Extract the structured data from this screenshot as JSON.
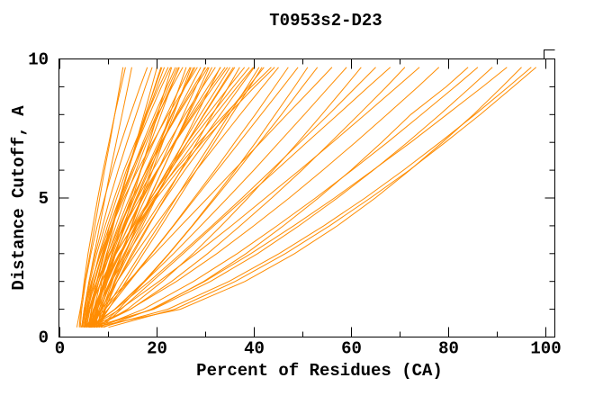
{
  "chart_data": {
    "type": "line",
    "title": "T0953s2-D23",
    "xlabel": "Percent of Residues (CA)",
    "ylabel": "Distance Cutoff, A",
    "xlim": [
      0,
      100
    ],
    "ylim": [
      0,
      10
    ],
    "x_major_ticks": [
      0,
      20,
      40,
      60,
      80,
      100
    ],
    "x_minor_step": 10,
    "y_major_ticks": [
      0,
      5,
      10
    ],
    "y_minor_step": 1,
    "grid": false,
    "legend": "none",
    "series_color": "#FF8C00",
    "axis_color": "#000000",
    "background_color": "#FFFFFF",
    "description": "Cumulative distance-cutoff curves, one orange line per predicted model",
    "y_samples": [
      0.35,
      1,
      2,
      3,
      4,
      5,
      6,
      7,
      8,
      9,
      9.7
    ],
    "curves": [
      [
        3.5,
        4.2,
        5.2,
        6.2,
        7.2,
        8.2,
        9.2,
        10.3,
        11.3,
        12.3,
        13.0
      ],
      [
        4.0,
        4.3,
        5.0,
        5.8,
        6.8,
        7.8,
        8.9,
        10.1,
        11.3,
        12.6,
        13.5
      ],
      [
        4.5,
        5.0,
        6.0,
        7.1,
        8.2,
        9.3,
        10.4,
        11.6,
        12.8,
        14.0,
        14.8
      ],
      [
        4.2,
        4.5,
        5.3,
        6.4,
        7.7,
        9.2,
        10.8,
        12.6,
        14.5,
        16.5,
        18.0
      ],
      [
        4.5,
        5.0,
        6.0,
        7.3,
        8.8,
        10.3,
        12.0,
        13.8,
        15.7,
        17.6,
        19.0
      ],
      [
        5.0,
        6.0,
        7.7,
        9.2,
        10.9,
        12.5,
        14.1,
        15.7,
        17.3,
        18.9,
        20.0
      ],
      [
        5.5,
        6.2,
        7.6,
        9.1,
        10.7,
        12.4,
        14.1,
        15.8,
        17.7,
        19.5,
        20.8
      ],
      [
        7.5,
        7.8,
        8.6,
        9.7,
        11.0,
        12.4,
        14.0,
        15.7,
        17.6,
        19.6,
        21.0
      ],
      [
        6.0,
        6.5,
        7.6,
        9.0,
        10.2,
        12.3,
        14.0,
        16.0,
        17.9,
        20.0,
        21.5
      ],
      [
        4.8,
        5.2,
        6.2,
        7.6,
        9.3,
        11.2,
        13.2,
        15.5,
        17.9,
        20.4,
        22.3
      ],
      [
        5.3,
        5.7,
        6.7,
        8.1,
        9.8,
        11.7,
        13.7,
        16.0,
        18.4,
        20.9,
        22.8
      ],
      [
        7.0,
        8.1,
        9.8,
        11.5,
        13.2,
        15.0,
        16.7,
        18.4,
        20.1,
        21.8,
        23.0
      ],
      [
        5.2,
        5.8,
        7.2,
        8.8,
        10.7,
        12.7,
        14.9,
        17.1,
        19.5,
        22.0,
        23.8
      ],
      [
        5.0,
        5.6,
        7.0,
        8.7,
        10.6,
        12.9,
        15.2,
        17.5,
        19.9,
        22.4,
        24.2
      ],
      [
        6.0,
        6.6,
        8.0,
        9.6,
        11.5,
        13.5,
        15.7,
        17.9,
        20.3,
        22.8,
        24.6
      ],
      [
        6.5,
        7.4,
        9.0,
        10.7,
        12.6,
        14.6,
        16.6,
        18.7,
        20.8,
        22.9,
        24.5
      ],
      [
        5.0,
        5.4,
        6.6,
        8.3,
        10.2,
        12.4,
        14.8,
        17.4,
        20.2,
        23.1,
        25.3
      ],
      [
        7.5,
        8.8,
        10.8,
        12.7,
        14.7,
        16.7,
        18.7,
        20.7,
        22.6,
        24.6,
        26.0
      ],
      [
        5.8,
        6.5,
        8.0,
        9.9,
        12.0,
        14.3,
        16.7,
        19.3,
        22.0,
        24.8,
        26.8
      ],
      [
        7.0,
        8.4,
        10.5,
        12.7,
        14.8,
        16.9,
        19.1,
        21.2,
        23.4,
        25.5,
        27.0
      ],
      [
        6.2,
        7.2,
        9.1,
        11.2,
        13.4,
        15.7,
        18.1,
        20.6,
        23.1,
        25.7,
        27.5
      ],
      [
        6.8,
        7.5,
        9.0,
        10.9,
        13.0,
        15.3,
        17.7,
        20.3,
        23.0,
        25.8,
        27.8
      ],
      [
        4.6,
        5.1,
        6.5,
        8.4,
        10.7,
        13.2,
        16.0,
        19.1,
        22.3,
        25.8,
        28.3
      ],
      [
        7.0,
        7.7,
        9.3,
        11.3,
        13.5,
        15.9,
        18.4,
        21.1,
        23.9,
        26.9,
        29.0
      ],
      [
        5.5,
        7.2,
        9.8,
        12.4,
        15.0,
        17.6,
        20.2,
        22.8,
        25.4,
        28.0,
        29.8
      ],
      [
        6.5,
        7.0,
        8.4,
        10.3,
        12.5,
        15.0,
        17.8,
        20.8,
        24.1,
        27.5,
        30.0
      ],
      [
        6.0,
        6.5,
        8.0,
        9.9,
        12.3,
        14.9,
        17.8,
        20.9,
        24.3,
        27.9,
        30.5
      ],
      [
        6.4,
        8.1,
        10.7,
        13.3,
        15.9,
        18.5,
        21.1,
        23.7,
        26.3,
        28.9,
        30.7
      ],
      [
        8.0,
        9.1,
        11.2,
        13.5,
        15.9,
        18.4,
        21.1,
        23.8,
        26.5,
        29.3,
        31.3
      ],
      [
        5.2,
        6.0,
        8.0,
        10.4,
        13.1,
        16.0,
        19.1,
        22.4,
        25.8,
        29.4,
        32.0
      ],
      [
        6.8,
        8.6,
        11.4,
        14.2,
        17.0,
        19.8,
        22.6,
        25.4,
        28.2,
        31.0,
        33.0
      ],
      [
        6.3,
        7.1,
        9.1,
        11.5,
        14.2,
        17.1,
        20.2,
        23.5,
        26.9,
        30.5,
        33.1
      ],
      [
        7.2,
        7.8,
        9.4,
        11.5,
        14.1,
        16.9,
        20.1,
        23.6,
        27.3,
        31.1,
        34.0
      ],
      [
        4.4,
        5.3,
        7.6,
        10.2,
        13.3,
        16.5,
        20.0,
        23.7,
        27.6,
        31.6,
        34.5
      ],
      [
        5.6,
        7.0,
        9.6,
        12.5,
        15.6,
        18.8,
        22.1,
        25.5,
        28.9,
        32.5,
        35.0
      ],
      [
        6.3,
        7.7,
        10.3,
        13.2,
        16.3,
        19.5,
        22.8,
        26.2,
        29.6,
        33.2,
        35.7
      ],
      [
        8.5,
        9.4,
        11.4,
        13.8,
        16.6,
        19.6,
        22.8,
        26.2,
        29.7,
        33.4,
        36.0
      ],
      [
        6.4,
        8.5,
        11.8,
        15.1,
        18.3,
        21.6,
        24.9,
        28.2,
        31.4,
        34.7,
        37.0
      ],
      [
        7.8,
        8.4,
        10.3,
        12.7,
        15.5,
        18.8,
        22.3,
        26.2,
        30.4,
        34.8,
        38.0
      ],
      [
        5.0,
        6.1,
        8.6,
        11.6,
        15.0,
        18.7,
        22.7,
        26.8,
        31.2,
        35.7,
        39.0
      ],
      [
        5.8,
        6.9,
        9.4,
        12.4,
        15.8,
        19.5,
        23.5,
        27.6,
        32.0,
        36.5,
        39.8
      ],
      [
        6.0,
        7.6,
        10.6,
        14.0,
        17.5,
        21.2,
        25.0,
        29.0,
        33.0,
        37.1,
        40.0
      ],
      [
        7.0,
        9.4,
        13.0,
        16.6,
        20.3,
        23.9,
        27.5,
        31.2,
        34.8,
        38.5,
        41.0
      ],
      [
        7.6,
        10.0,
        13.6,
        17.2,
        20.9,
        24.5,
        28.1,
        31.8,
        35.4,
        39.1,
        41.6
      ],
      [
        8.2,
        9.3,
        11.8,
        14.8,
        18.1,
        21.8,
        25.7,
        29.9,
        34.2,
        38.8,
        42.0
      ],
      [
        5.4,
        6.2,
        8.5,
        11.5,
        15.2,
        19.2,
        23.7,
        28.6,
        33.9,
        39.4,
        43.5
      ],
      [
        6.1,
        6.9,
        9.2,
        12.2,
        15.9,
        19.9,
        24.4,
        29.3,
        34.6,
        40.1,
        44.2
      ],
      [
        6.6,
        8.4,
        11.8,
        15.6,
        19.6,
        23.8,
        28.1,
        32.6,
        37.1,
        41.7,
        45.0
      ],
      [
        5.5,
        9.3,
        14.2,
        18.8,
        23.3,
        27.6,
        31.9,
        36.0,
        40.2,
        44.2,
        47.0
      ],
      [
        7.0,
        9.9,
        14.4,
        18.9,
        23.4,
        27.9,
        32.4,
        36.9,
        41.4,
        45.9,
        49.0
      ],
      [
        6.0,
        11.3,
        17.3,
        22.4,
        27.2,
        31.7,
        36.1,
        40.3,
        44.3,
        48.3,
        51.0
      ],
      [
        8.0,
        12.1,
        17.5,
        22.5,
        27.3,
        32.0,
        36.6,
        41.1,
        45.6,
        49.9,
        53.0
      ],
      [
        5.0,
        8.5,
        14.0,
        19.5,
        24.9,
        30.4,
        35.8,
        41.3,
        46.7,
        52.2,
        56.0
      ],
      [
        6.5,
        11.3,
        17.5,
        23.4,
        29.0,
        34.5,
        39.9,
        45.1,
        50.3,
        55.4,
        59.0
      ],
      [
        7.5,
        13.9,
        21.1,
        27.4,
        33.2,
        38.7,
        43.9,
        49.0,
        53.9,
        58.7,
        62.0
      ],
      [
        6.0,
        11.4,
        18.4,
        24.9,
        31.3,
        37.5,
        43.5,
        49.4,
        55.3,
        61.0,
        65.0
      ],
      [
        8.5,
        12.6,
        19.0,
        25.4,
        31.7,
        38.1,
        44.5,
        50.8,
        57.2,
        63.5,
        68.0
      ],
      [
        7.0,
        14.6,
        23.0,
        30.4,
        37.1,
        43.6,
        49.8,
        55.7,
        61.5,
        67.2,
        71.0
      ],
      [
        6.2,
        12.4,
        20.4,
        28.0,
        35.3,
        42.3,
        49.3,
        56.1,
        62.8,
        69.4,
        74.0
      ],
      [
        6.0,
        14.5,
        24.0,
        32.3,
        39.9,
        47.2,
        54.1,
        60.8,
        67.3,
        73.7,
        78.0
      ],
      [
        7.5,
        19.1,
        29.6,
        38.3,
        46.0,
        53.2,
        59.9,
        66.2,
        72.2,
        79.5,
        84.0
      ],
      [
        8.0,
        17.2,
        27.5,
        36.5,
        44.7,
        52.6,
        60.1,
        67.4,
        74.4,
        81.3,
        86.0
      ],
      [
        6.5,
        19.3,
        31.0,
        40.7,
        49.2,
        57.1,
        64.5,
        71.5,
        78.2,
        84.6,
        89.0
      ],
      [
        9.0,
        18.8,
        29.8,
        39.3,
        48.1,
        56.5,
        64.4,
        72.2,
        79.6,
        87.0,
        92.0
      ],
      [
        7.0,
        24.8,
        38.1,
        48.3,
        57.1,
        64.9,
        72.0,
        78.7,
        85.1,
        91.0,
        95.0
      ],
      [
        8.5,
        22.2,
        34.8,
        45.1,
        54.3,
        62.8,
        70.7,
        78.2,
        85.4,
        92.3,
        97.0
      ],
      [
        10.0,
        23.6,
        36.1,
        46.4,
        55.5,
        63.9,
        71.9,
        79.3,
        86.5,
        93.3,
        98.0
      ]
    ]
  }
}
